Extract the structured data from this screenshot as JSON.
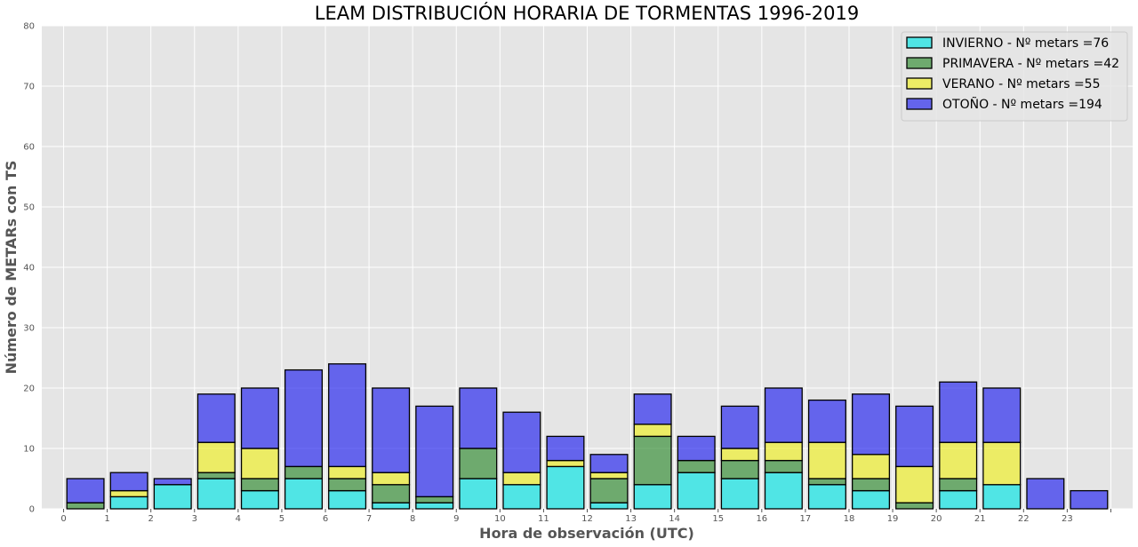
{
  "chart_data": {
    "type": "bar",
    "stacked": true,
    "title": "LEAM DISTRIBUCIÓN HORARIA DE TORMENTAS 1996-2019",
    "xlabel": "Hora de observación (UTC)",
    "ylabel": "Número de METARs con TS",
    "ylim": [
      0,
      80
    ],
    "yticks": [
      0,
      10,
      20,
      30,
      40,
      50,
      60,
      70,
      80
    ],
    "xlim": [
      -0.5,
      24.5
    ],
    "categories": [
      0,
      1,
      2,
      3,
      4,
      5,
      6,
      7,
      8,
      9,
      10,
      11,
      12,
      13,
      14,
      15,
      16,
      17,
      18,
      19,
      20,
      21,
      22,
      23
    ],
    "xtick_labels": [
      "0",
      "1",
      "2",
      "3",
      "4",
      "5",
      "6",
      "7",
      "8",
      "9",
      "10",
      "11",
      "12",
      "13",
      "14",
      "15",
      "16",
      "17",
      "18",
      "19",
      "20",
      "21",
      "22",
      "23",
      ""
    ],
    "grid": true,
    "legend_position": "top-right",
    "series": [
      {
        "name": "INVIERNO - Nº metars =76",
        "color": "#00e5e5",
        "values": [
          0,
          2,
          4,
          5,
          3,
          5,
          3,
          1,
          1,
          5,
          4,
          7,
          1,
          4,
          6,
          5,
          6,
          4,
          3,
          0,
          3,
          4,
          0,
          0
        ]
      },
      {
        "name": "PRIMAVERA - Nº metars =42",
        "color": "#2e8b2e",
        "values": [
          1,
          0,
          0,
          1,
          2,
          2,
          2,
          3,
          1,
          5,
          0,
          0,
          4,
          8,
          2,
          3,
          2,
          1,
          2,
          1,
          2,
          0,
          0,
          0
        ]
      },
      {
        "name": "VERANO - Nº metars =55",
        "color": "#f0f020",
        "values": [
          0,
          1,
          0,
          5,
          5,
          0,
          2,
          2,
          0,
          0,
          2,
          1,
          1,
          2,
          0,
          2,
          3,
          6,
          4,
          6,
          6,
          7,
          0,
          0
        ]
      },
      {
        "name": "OTOÑO - Nº metars =194",
        "color": "#1f1ff0",
        "values": [
          4,
          3,
          1,
          8,
          10,
          16,
          17,
          14,
          15,
          10,
          10,
          4,
          3,
          5,
          4,
          7,
          9,
          7,
          10,
          10,
          10,
          9,
          5,
          3
        ]
      }
    ]
  }
}
